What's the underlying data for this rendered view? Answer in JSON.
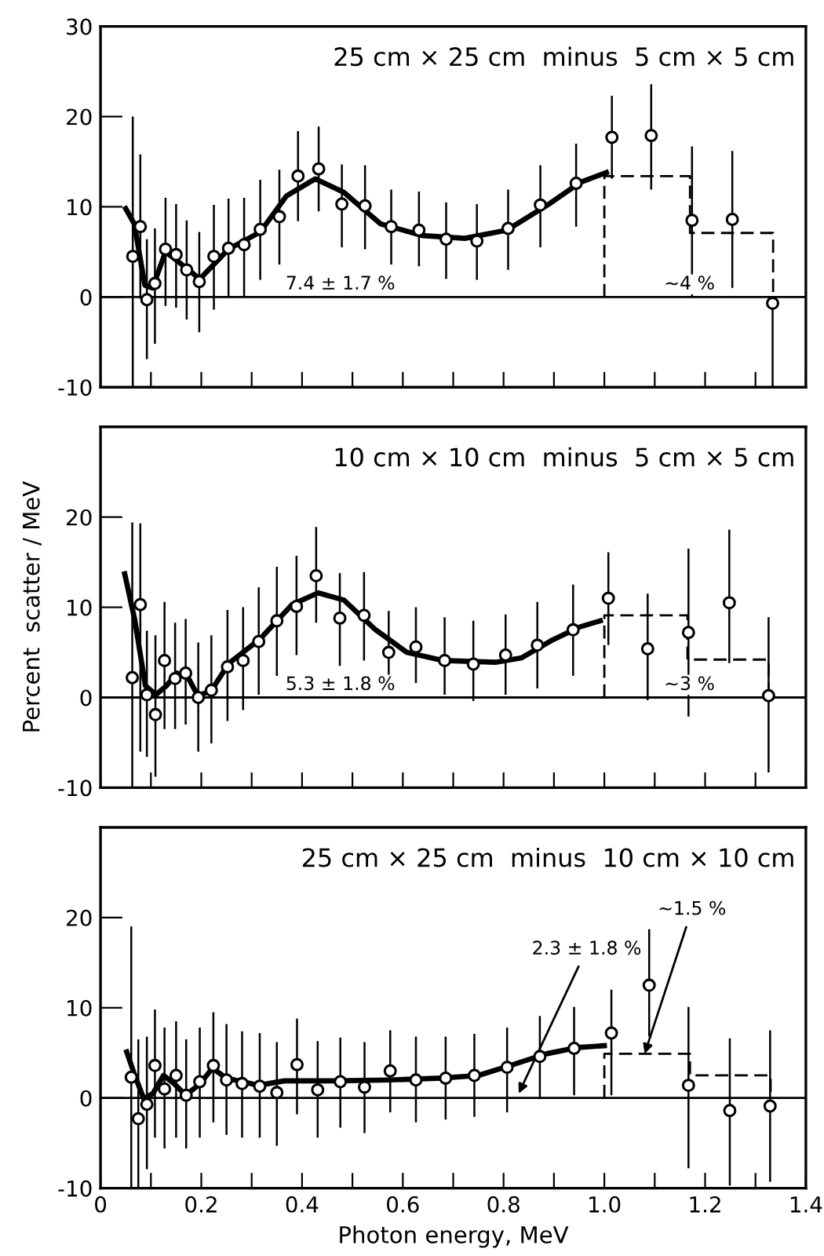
{
  "chart_data": [
    {
      "type": "scatter",
      "title": "25 cm × 25 cm  minus  5 cm × 5 cm",
      "xlim": [
        0,
        1.4
      ],
      "ylim": [
        -10,
        30
      ],
      "xticks": [
        0,
        0.1,
        0.2,
        0.3,
        0.4,
        0.5,
        0.6,
        0.7,
        0.8,
        0.9,
        1.0,
        1.1,
        1.2,
        1.3,
        1.4
      ],
      "yticks": [
        -10,
        0,
        10,
        20,
        30
      ],
      "tick_labels": "y",
      "ref_lines": [
        {
          "axis": "y",
          "value": 0,
          "color": "#000000"
        }
      ],
      "series": [
        {
          "color": "#000000",
          "marker": "circle",
          "x": [
            0.064,
            0.079,
            0.092,
            0.108,
            0.129,
            0.15,
            0.171,
            0.196,
            0.225,
            0.254,
            0.285,
            0.317,
            0.355,
            0.392,
            0.433,
            0.479,
            0.525,
            0.577,
            0.632,
            0.686,
            0.747,
            0.809,
            0.873,
            0.944,
            1.015,
            1.093,
            1.174,
            1.254,
            1.334
          ],
          "values": [
            4.5,
            7.8,
            -0.3,
            1.5,
            5.3,
            4.7,
            3.0,
            1.7,
            4.5,
            5.4,
            5.8,
            7.5,
            8.9,
            13.4,
            14.2,
            10.3,
            10.1,
            7.8,
            7.4,
            6.4,
            6.2,
            7.6,
            10.2,
            12.6,
            17.7,
            17.9,
            8.5,
            8.6,
            -0.7
          ],
          "errors": [
            [
              -10,
              20
            ],
            [
              -0.2,
              15.8
            ],
            [
              -6.9,
              6.4
            ],
            [
              -5.2,
              7.6
            ],
            [
              -1,
              11
            ],
            [
              -1.2,
              10.3
            ],
            [
              -2.5,
              8.5
            ],
            [
              -3.9,
              7.2
            ],
            [
              -1.4,
              10.2
            ],
            [
              0,
              10.9
            ],
            [
              0,
              11
            ],
            [
              1.9,
              13
            ],
            [
              3.6,
              14.1
            ],
            [
              8.4,
              18.4
            ],
            [
              9.5,
              18.9
            ],
            [
              5.5,
              14.7
            ],
            [
              5.3,
              14.6
            ],
            [
              3.6,
              11.9
            ],
            [
              3.4,
              11.7
            ],
            [
              2,
              10.5
            ],
            [
              1.9,
              10.3
            ],
            [
              3,
              11.9
            ],
            [
              5.5,
              14.6
            ],
            [
              7.8,
              17
            ],
            [
              13.1,
              22.3
            ],
            [
              11.9,
              23.6
            ],
            [
              0,
              16.7
            ],
            [
              1,
              16.2
            ],
            [
              -10,
              0
            ]
          ]
        },
        {
          "type": "line",
          "color": "#000000",
          "line_style": "solid",
          "x": [
            0.05,
            0.067,
            0.088,
            0.103,
            0.129,
            0.15,
            0.197,
            0.254,
            0.317,
            0.369,
            0.426,
            0.483,
            0.556,
            0.64,
            0.723,
            0.806,
            0.89,
            0.952,
            1.004
          ],
          "values": [
            9.8,
            8.1,
            1.3,
            1.0,
            5.0,
            4.1,
            2.0,
            5.3,
            7.2,
            11.2,
            13.1,
            11.6,
            8.1,
            6.8,
            6.5,
            7.4,
            10.3,
            12.7,
            13.8
          ]
        },
        {
          "type": "line",
          "color": "#000000",
          "line_style": "dashed",
          "x": [
            1.0,
            1.0,
            1.17,
            1.17,
            1.335,
            1.335
          ],
          "values": [
            0,
            13.4,
            13.4,
            7.1,
            7.1,
            0
          ]
        }
      ],
      "annotations": [
        "7.4 ± 1.7 %",
        "~4 %"
      ]
    },
    {
      "type": "scatter",
      "title": "10 cm × 10 cm  minus  5 cm × 5 cm",
      "ylabel": "Percent  scatter / MeV",
      "xlim": [
        0,
        1.4
      ],
      "ylim": [
        -10,
        30
      ],
      "xticks": [
        0,
        0.1,
        0.2,
        0.3,
        0.4,
        0.5,
        0.6,
        0.7,
        0.8,
        0.9,
        1.0,
        1.1,
        1.2,
        1.3,
        1.4
      ],
      "yticks": [
        -10,
        0,
        10,
        20
      ],
      "tick_labels": "y",
      "ref_lines": [
        {
          "axis": "y",
          "value": 0,
          "color": "#000000"
        }
      ],
      "series": [
        {
          "color": "#000000",
          "marker": "circle",
          "x": [
            0.063,
            0.079,
            0.092,
            0.109,
            0.127,
            0.148,
            0.169,
            0.194,
            0.22,
            0.252,
            0.283,
            0.314,
            0.35,
            0.389,
            0.428,
            0.475,
            0.523,
            0.572,
            0.626,
            0.683,
            0.74,
            0.804,
            0.867,
            0.938,
            1.008,
            1.086,
            1.167,
            1.248,
            1.326
          ],
          "values": [
            2.2,
            10.3,
            0.3,
            -1.9,
            4.1,
            2.1,
            2.7,
            0,
            0.8,
            3.4,
            4.1,
            6.2,
            8.5,
            10.1,
            13.5,
            8.8,
            9.1,
            5,
            5.6,
            4.1,
            3.7,
            4.7,
            5.8,
            7.5,
            11,
            5.4,
            7.2,
            10.5,
            0.2
          ],
          "errors": [
            [
              -10,
              19.4
            ],
            [
              -6,
              19.3
            ],
            [
              -6.6,
              7.4
            ],
            [
              -8.8,
              6.9
            ],
            [
              -3.5,
              10.6
            ],
            [
              -3.5,
              8.3
            ],
            [
              -3,
              8.7
            ],
            [
              -6,
              6.1
            ],
            [
              -5.1,
              6.9
            ],
            [
              -2.6,
              9.7
            ],
            [
              -1.4,
              10
            ],
            [
              0.3,
              12.2
            ],
            [
              2.4,
              14.5
            ],
            [
              4.7,
              15.7
            ],
            [
              8.3,
              18.9
            ],
            [
              3.5,
              13.8
            ],
            [
              4.1,
              13.9
            ],
            [
              0.3,
              9.6
            ],
            [
              1.6,
              10
            ],
            [
              0.3,
              8.9
            ],
            [
              -0.4,
              8.5
            ],
            [
              0.3,
              9.2
            ],
            [
              1,
              10.6
            ],
            [
              2.4,
              12.5
            ],
            [
              5.8,
              16.1
            ],
            [
              -0.3,
              11.5
            ],
            [
              -2.1,
              16.5
            ],
            [
              3.8,
              18.6
            ],
            [
              -8.3,
              8.9
            ]
          ]
        },
        {
          "type": "line",
          "color": "#000000",
          "line_style": "solid",
          "x": [
            0.048,
            0.068,
            0.089,
            0.11,
            0.131,
            0.151,
            0.172,
            0.193,
            0.219,
            0.255,
            0.317,
            0.38,
            0.432,
            0.483,
            0.546,
            0.608,
            0.68,
            0.784,
            0.836,
            0.898,
            0.95,
            0.992
          ],
          "values": [
            13.7,
            8.6,
            1.3,
            0.3,
            1.3,
            2.7,
            2.4,
            0.2,
            0.7,
            3.8,
            6.5,
            10.3,
            11.6,
            10.8,
            7.5,
            5,
            4.1,
            3.9,
            4.4,
            6.4,
            7.8,
            8.5
          ]
        },
        {
          "type": "line",
          "color": "#000000",
          "line_style": "dashed",
          "x": [
            1.0,
            1.0,
            1.165,
            1.165,
            1.326,
            1.326
          ],
          "values": [
            0,
            9.1,
            9.1,
            4.2,
            4.2,
            0
          ]
        }
      ],
      "annotations": [
        "5.3 ± 1.8 %",
        "~3 %"
      ]
    },
    {
      "type": "scatter",
      "title": "25 cm × 25 cm  minus  10 cm × 10 cm",
      "xlabel": "Photon energy, MeV",
      "xlim": [
        0,
        1.4
      ],
      "ylim": [
        -10,
        30
      ],
      "xticks": [
        0,
        {
          "value": 0.1,
          "label": null
        },
        {
          "value": 0.2,
          "label": "0.2"
        },
        {
          "value": 0.3,
          "label": null
        },
        {
          "value": 0.4,
          "label": "0.4"
        },
        {
          "value": 0.5,
          "label": null
        },
        {
          "value": 0.6,
          "label": "0.6"
        },
        {
          "value": 0.7,
          "label": null
        },
        {
          "value": 0.8,
          "label": "0.8"
        },
        {
          "value": 0.9,
          "label": null
        },
        {
          "value": 1.0,
          "label": "1.0"
        },
        {
          "value": 1.1,
          "label": null
        },
        {
          "value": 1.2,
          "label": "1.2"
        },
        {
          "value": 1.3,
          "label": null
        },
        {
          "value": 1.4,
          "label": "1.4"
        }
      ],
      "yticks": [
        -10,
        0,
        10,
        20
      ],
      "ref_lines": [
        {
          "axis": "y",
          "value": 0,
          "color": "#000000"
        }
      ],
      "series": [
        {
          "color": "#000000",
          "marker": "circle",
          "x": [
            0.061,
            0.075,
            0.092,
            0.108,
            0.127,
            0.15,
            0.17,
            0.197,
            0.224,
            0.25,
            0.281,
            0.316,
            0.35,
            0.39,
            0.431,
            0.476,
            0.524,
            0.575,
            0.626,
            0.685,
            0.742,
            0.807,
            0.872,
            0.94,
            1.014,
            1.089,
            1.167,
            1.249,
            1.329
          ],
          "values": [
            2.3,
            -2.3,
            -0.7,
            3.6,
            1,
            2.5,
            0.3,
            1.8,
            3.6,
            2,
            1.6,
            1.3,
            0.6,
            3.7,
            0.9,
            1.8,
            1.2,
            3,
            2,
            2.2,
            2.5,
            3.4,
            4.6,
            5.5,
            7.2,
            12.5,
            1.4,
            -1.4,
            -0.9
          ],
          "errors": [
            [
              -10,
              19
            ],
            [
              -10,
              6.5
            ],
            [
              -7.9,
              6.8
            ],
            [
              -4.4,
              9.8
            ],
            [
              -5.6,
              7.8
            ],
            [
              -4.4,
              8.5
            ],
            [
              -5.6,
              6.5
            ],
            [
              -4.4,
              7.8
            ],
            [
              -2.7,
              9.5
            ],
            [
              -4.1,
              8.2
            ],
            [
              -4.4,
              7.4
            ],
            [
              -4.4,
              7.2
            ],
            [
              -5.3,
              6.2
            ],
            [
              -1.8,
              8.8
            ],
            [
              -4.4,
              6.3
            ],
            [
              -3.3,
              6.7
            ],
            [
              -3.9,
              6.2
            ],
            [
              -1.6,
              7.5
            ],
            [
              -2.7,
              6.8
            ],
            [
              -2.4,
              6.8
            ],
            [
              -2.1,
              7.1
            ],
            [
              -1.6,
              7.8
            ],
            [
              0,
              9.1
            ],
            [
              0.3,
              10.1
            ],
            [
              0.3,
              12
            ],
            [
              6.8,
              18.7
            ],
            [
              -7.8,
              10.1
            ],
            [
              -9.7,
              6.6
            ],
            [
              -9.3,
              7.5
            ]
          ]
        },
        {
          "type": "line",
          "color": "#000000",
          "line_style": "solid",
          "x": [
            0.052,
            0.068,
            0.086,
            0.104,
            0.125,
            0.146,
            0.169,
            0.198,
            0.222,
            0.25,
            0.313,
            0.365,
            0.469,
            0.573,
            0.677,
            0.75,
            0.813,
            0.885,
            0.948,
            1.0
          ],
          "values": [
            5.1,
            2.5,
            -0.1,
            0.5,
            2.5,
            1.6,
            0.3,
            1.6,
            3.3,
            2.2,
            1.4,
            1.9,
            1.9,
            2,
            2.2,
            2.5,
            3.6,
            4.9,
            5.6,
            5.8
          ]
        },
        {
          "type": "line",
          "color": "#000000",
          "line_style": "dashed",
          "x": [
            1.0,
            1.0,
            1.17,
            1.17,
            1.33,
            1.33
          ],
          "values": [
            0,
            4.9,
            4.9,
            2.5,
            2.5,
            0
          ]
        }
      ],
      "annotations": [
        {
          "text": "2.3 ± 1.8 %",
          "x": 0.83,
          "y": 0.5
        },
        {
          "text": "~1.5 %",
          "x": 1.08,
          "y": 4.9
        }
      ]
    }
  ]
}
